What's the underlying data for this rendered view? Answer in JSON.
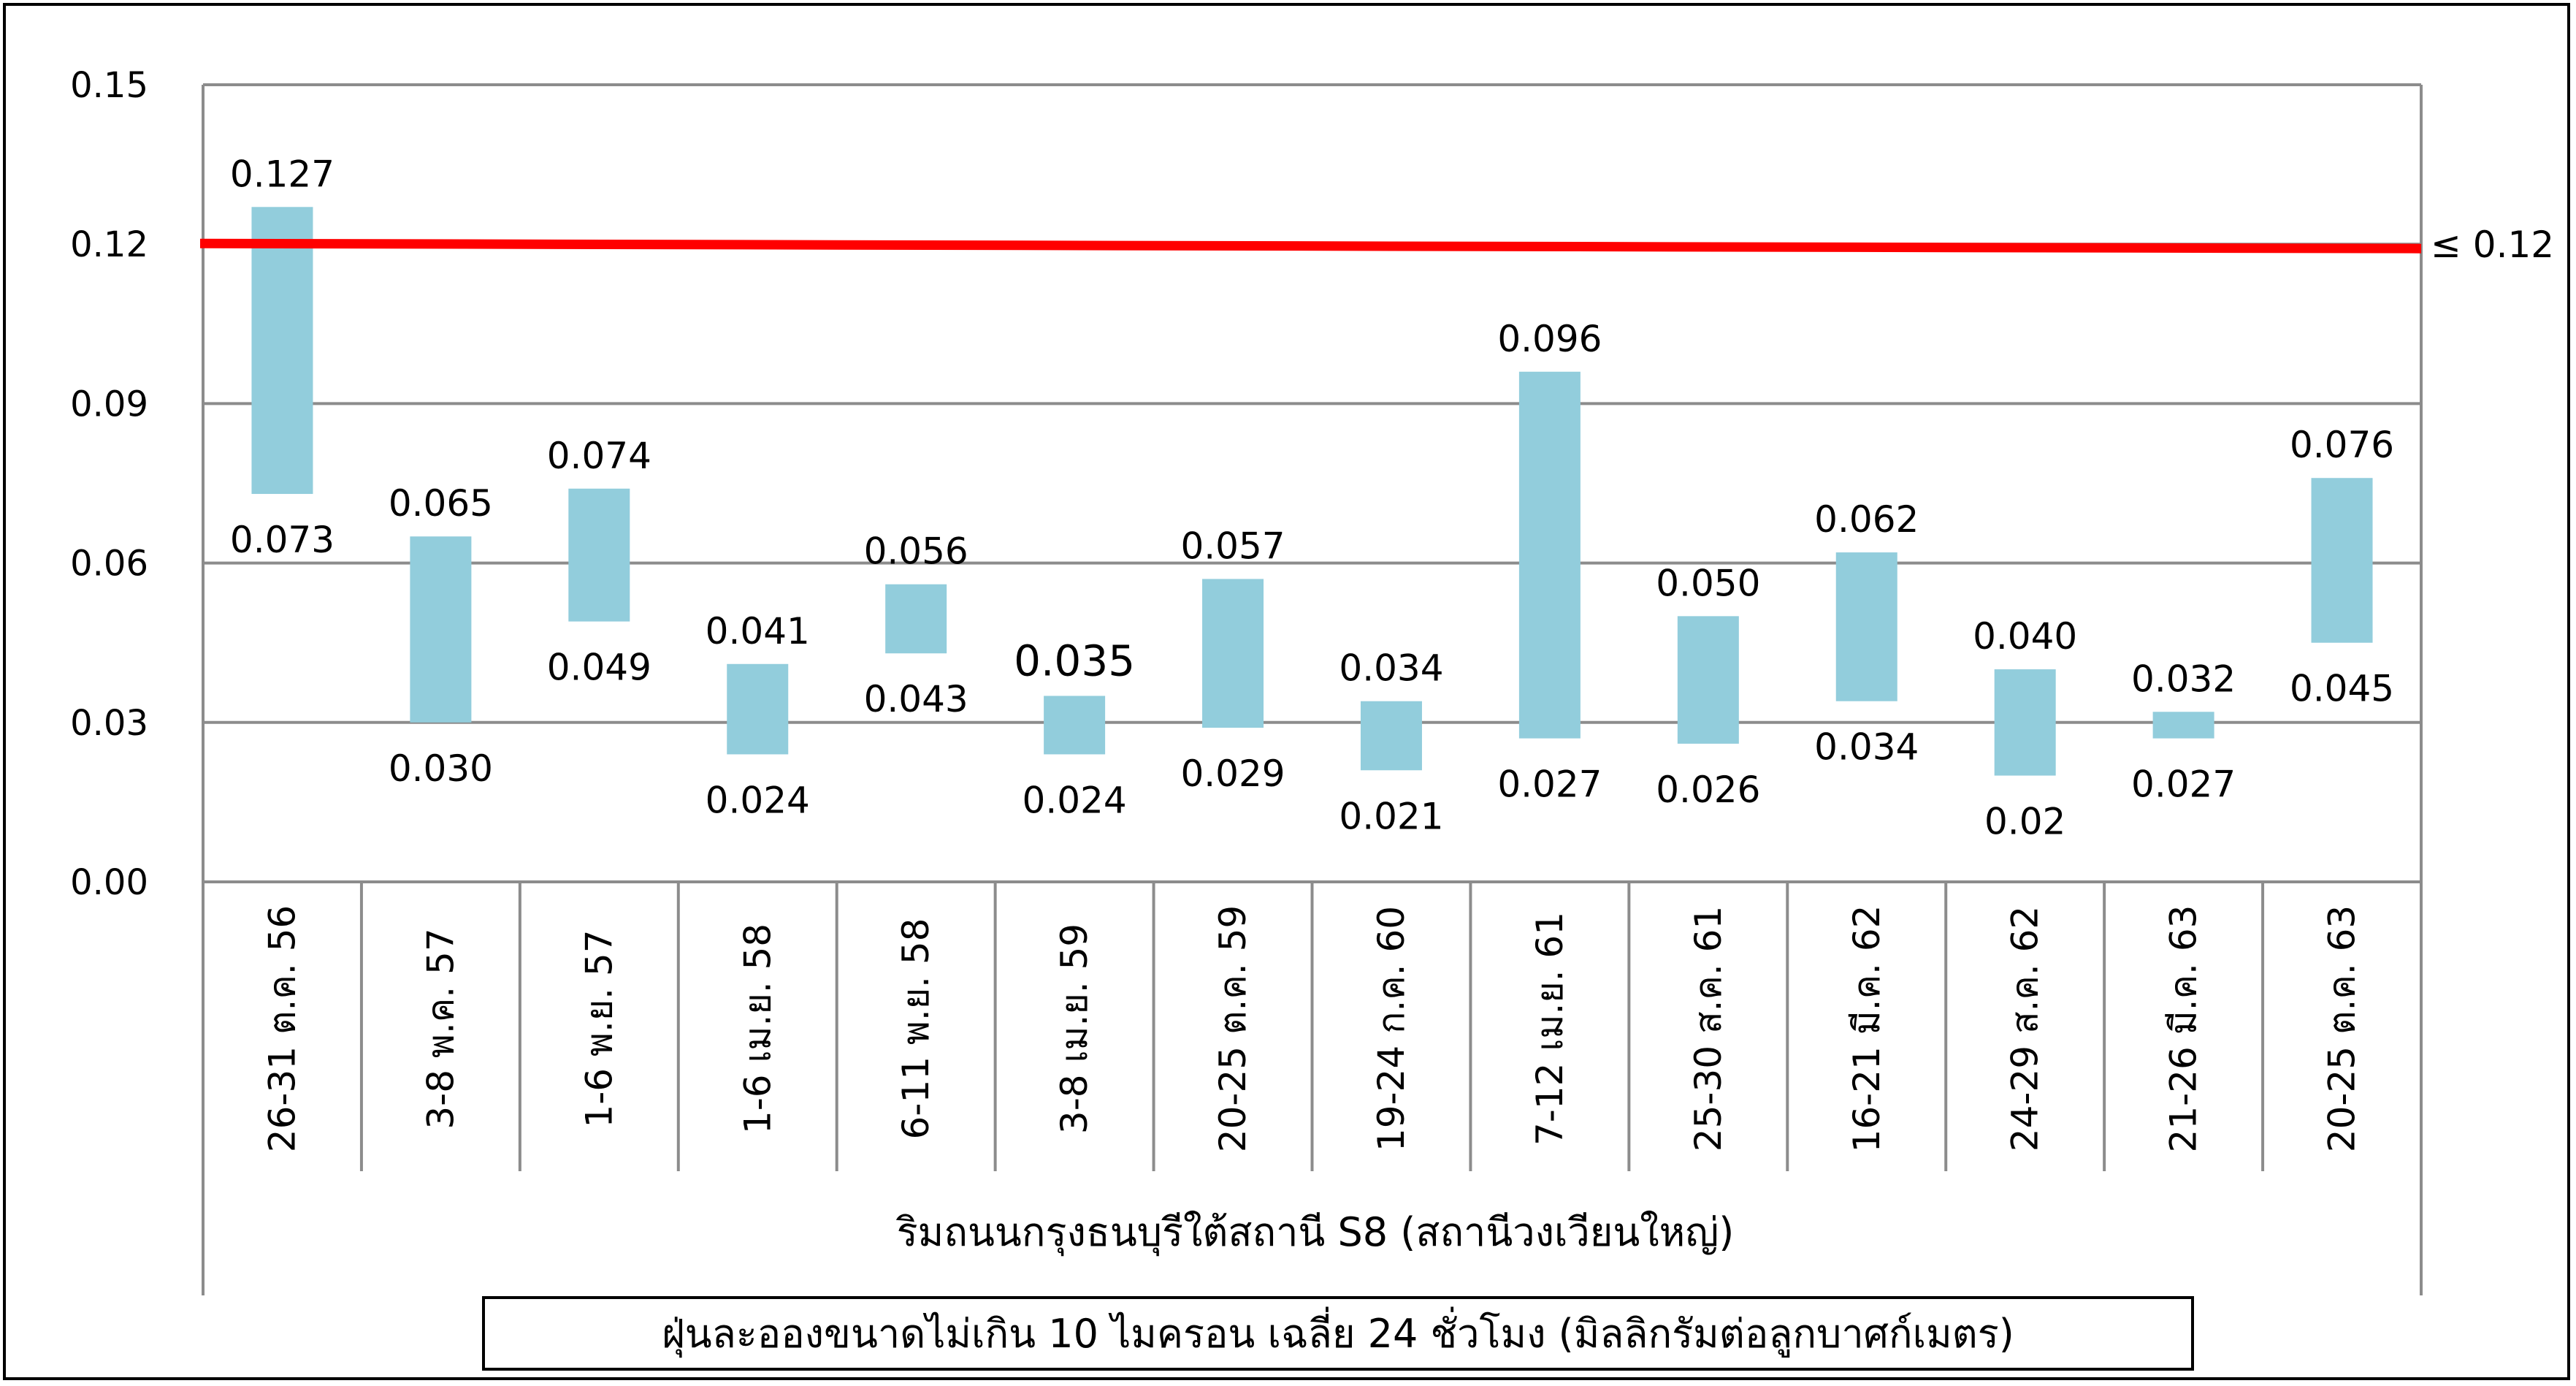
{
  "chart_data": {
    "type": "floating-bar",
    "title": "ฝุ่นละอองขนาดไม่เกิน 10 ไมครอน เฉลี่ย 24 ชั่วโมง (มิลลิกรัมต่อลูกบาศก์เมตร)",
    "xlabel": "ริมถนนกรุงธนบุรีใต้สถานี S8 (สถานีวงเวียนใหญ่)",
    "ylabel": "",
    "ylim": [
      0,
      0.15
    ],
    "yticks": [
      "0.00",
      "0.03",
      "0.06",
      "0.09",
      "0.12",
      "0.15"
    ],
    "grid": true,
    "standard": {
      "value": 0.12,
      "label": "≤ 0.12",
      "color": "#ff0000"
    },
    "bar_color": "#92cddc",
    "categories": [
      "26-31 ต.ค. 56",
      "3-8 พ.ค. 57",
      "1-6 พ.ย. 57",
      "1-6 เม.ย. 58",
      "6-11 พ.ย. 58",
      "3-8 เม.ย. 59",
      "20-25 ต.ค. 59",
      "19-24 ก.ค. 60",
      "7-12 เม.ย. 61",
      "25-30 ส.ค. 61",
      "16-21 มี.ค. 62",
      "24-29 ส.ค. 62",
      "21-26 มี.ค. 63",
      "20-25 ต.ค. 63"
    ],
    "max_values": [
      0.127,
      0.065,
      0.074,
      0.041,
      0.056,
      0.035,
      0.057,
      0.034,
      0.096,
      0.05,
      0.062,
      0.04,
      0.032,
      0.076
    ],
    "min_values": [
      0.073,
      0.03,
      0.049,
      0.024,
      0.043,
      0.024,
      0.029,
      0.021,
      0.027,
      0.026,
      0.034,
      0.02,
      0.027,
      0.045
    ],
    "max_labels": [
      "0.127",
      "0.065",
      "0.074",
      "0.041",
      "0.056",
      "0.035",
      "0.057",
      "0.034",
      "0.096",
      "0.050",
      "0.062",
      "0.040",
      "0.032",
      "0.076"
    ],
    "min_labels": [
      "0.073",
      "0.030",
      "0.049",
      "0.024",
      "0.043",
      "0.024",
      "0.029",
      "0.021",
      "0.027",
      "0.026",
      "0.034",
      "0.02",
      "0.027",
      "0.045"
    ]
  }
}
